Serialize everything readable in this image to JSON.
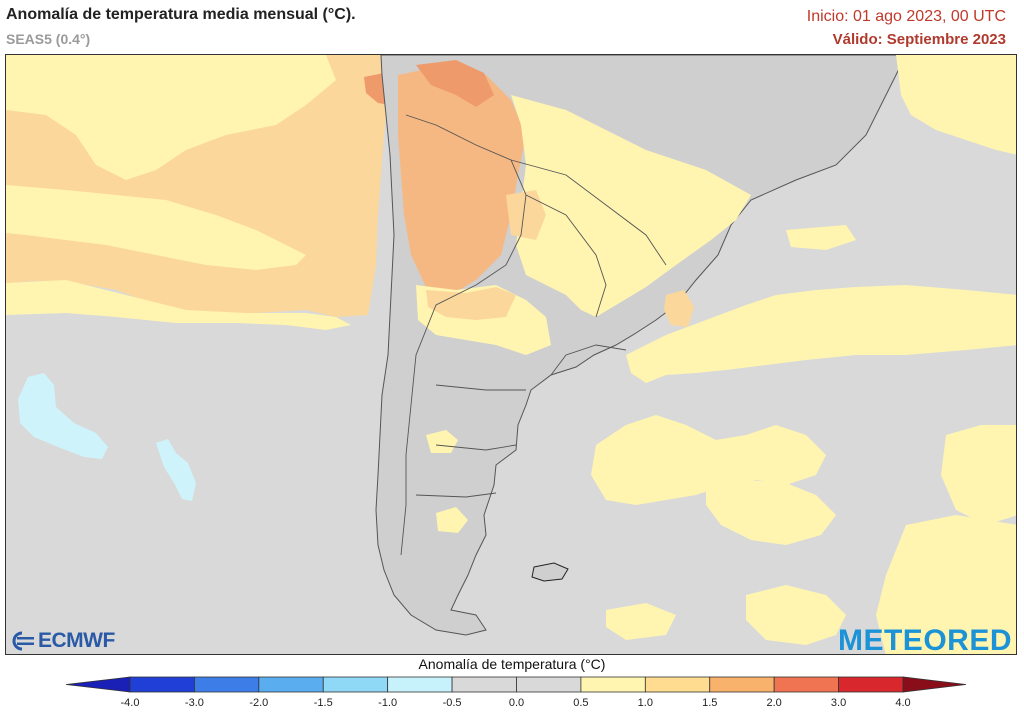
{
  "header": {
    "title": "Anomalía de temperatura media mensual (°C).",
    "subtitle": "SEAS5 (0.4°)",
    "init": "Inicio: 01 ago 2023, 00 UTC",
    "valid": "Válido: Septiembre 2023"
  },
  "logos": {
    "ecmwf": "ECMWF",
    "meteored": "METEORED"
  },
  "legend": {
    "title": "Anomalía de temperatura (°C)",
    "ticks": [
      "-4.0",
      "-3.0",
      "-2.0",
      "-1.5",
      "-1.0",
      "-0.5",
      "0.0",
      "0.5",
      "1.0",
      "1.5",
      "2.0",
      "3.0",
      "4.0"
    ],
    "colors": [
      "#1f3fd6",
      "#3c7de8",
      "#5aaef0",
      "#8fd9f6",
      "#c8f2fb",
      "#d9d9d9",
      "#d9d9d9",
      "#fff5b0",
      "#ffdc8f",
      "#f8b26c",
      "#f07451",
      "#d9272e"
    ],
    "low_end_color": "#1a1fb5",
    "high_end_color": "#8a0d1a"
  },
  "map": {
    "ocean_neutral": "#d9d9d9",
    "land_neutral": "#cfcfcf",
    "anomaly_light": "#fff5b0",
    "anomaly_medium": "#fbd79c",
    "anomaly_warm": "#f6b883",
    "anomaly_hot": "#ee9a6a",
    "anomaly_cool": "#cff3fb",
    "border_color": "#555555"
  }
}
